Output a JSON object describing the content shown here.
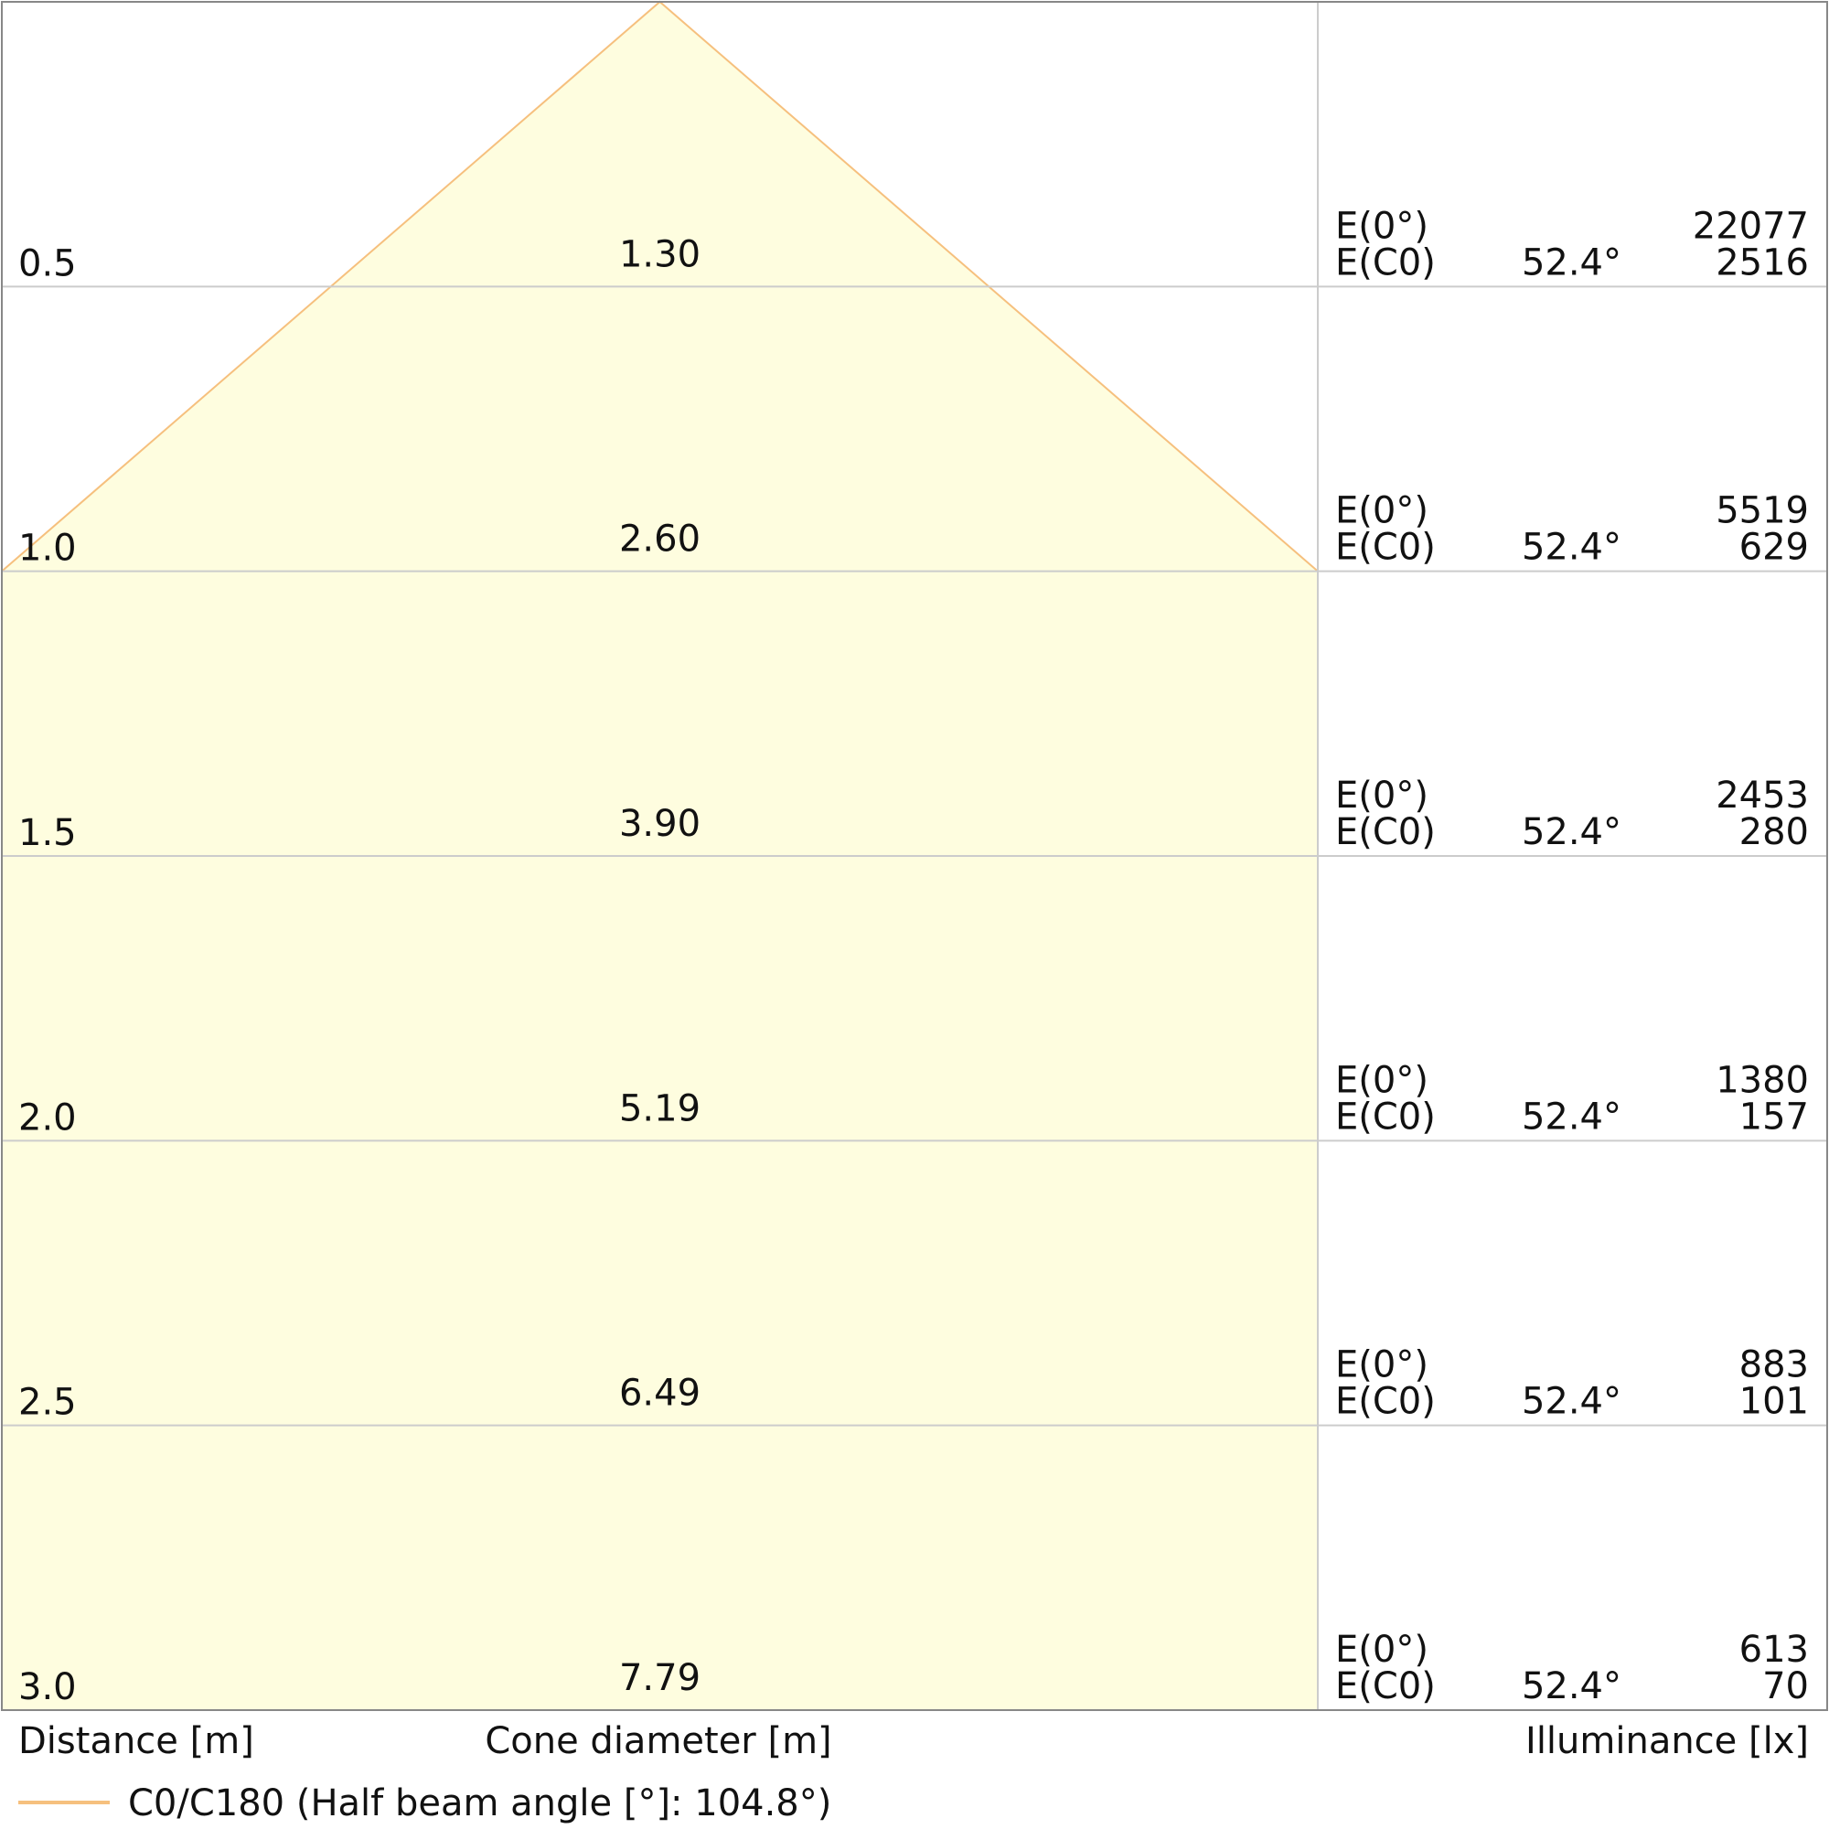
{
  "chart_data": {
    "type": "area",
    "title": "",
    "distance_label": "Distance [m]",
    "cone_label": "Cone diameter [m]",
    "illuminance_label": "Illuminance [lx]",
    "legend": {
      "label": "C0/C180 (Half beam angle [°]: 104.8°)",
      "color": "#f6c07e",
      "placement": "bottom-left"
    },
    "fill_color": "#fefddf",
    "grid": true,
    "rows": [
      {
        "distance": "0.5",
        "cone": "1.30",
        "e0_label": "E(0°)",
        "ec0_label": "E(C0)",
        "angle": "52.4°",
        "e0": "22077",
        "ec0": "2516"
      },
      {
        "distance": "1.0",
        "cone": "2.60",
        "e0_label": "E(0°)",
        "ec0_label": "E(C0)",
        "angle": "52.4°",
        "e0": "5519",
        "ec0": "629"
      },
      {
        "distance": "1.5",
        "cone": "3.90",
        "e0_label": "E(0°)",
        "ec0_label": "E(C0)",
        "angle": "52.4°",
        "e0": "2453",
        "ec0": "280"
      },
      {
        "distance": "2.0",
        "cone": "5.19",
        "e0_label": "E(0°)",
        "ec0_label": "E(C0)",
        "angle": "52.4°",
        "e0": "1380",
        "ec0": "157"
      },
      {
        "distance": "2.5",
        "cone": "6.49",
        "e0_label": "E(0°)",
        "ec0_label": "E(C0)",
        "angle": "52.4°",
        "e0": "883",
        "ec0": "101"
      },
      {
        "distance": "3.0",
        "cone": "7.79",
        "e0_label": "E(0°)",
        "ec0_label": "E(C0)",
        "angle": "52.4°",
        "e0": "613",
        "ec0": "70"
      }
    ],
    "max_distance": 3.0,
    "visible_cone_width": 2.6
  }
}
